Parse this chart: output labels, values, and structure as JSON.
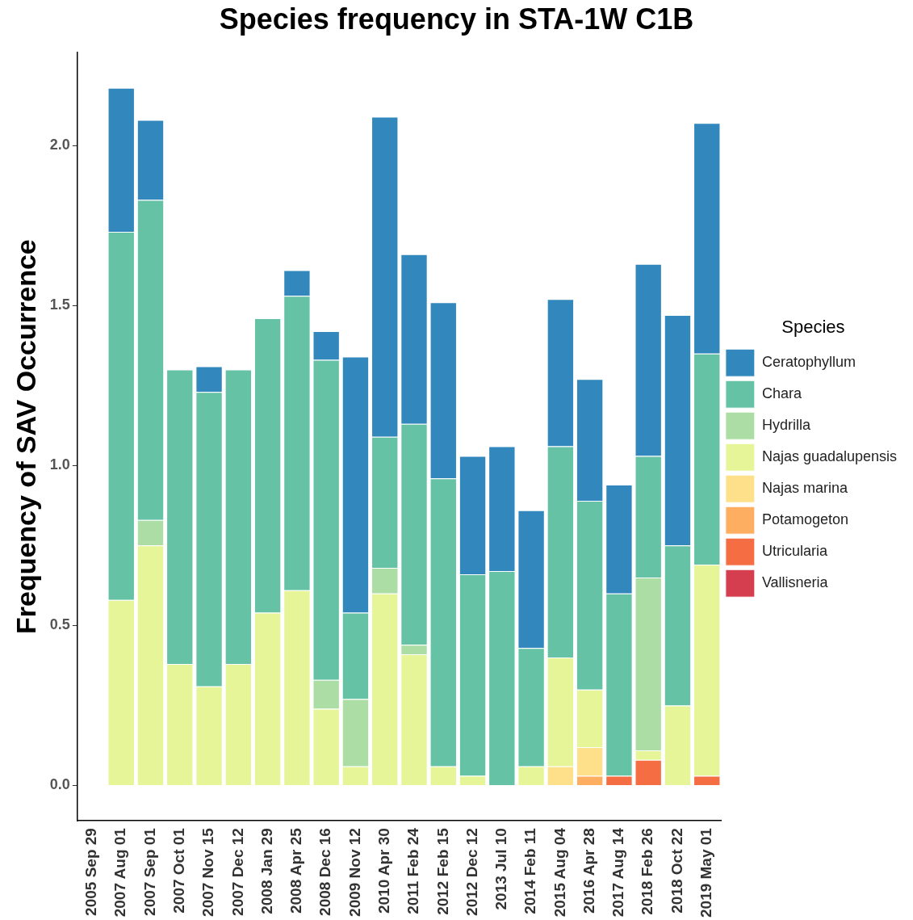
{
  "chart_data": {
    "type": "bar",
    "title": "Species frequency in STA-1W C1B",
    "ylabel": "Frequency of SAV Occurrence",
    "legend_title": "Species",
    "categories": [
      "2005 Sep 29",
      "2007 Aug 01",
      "2007 Sep 01",
      "2007 Oct 01",
      "2007 Nov 15",
      "2007 Dec 12",
      "2008 Jan 29",
      "2008 Apr 25",
      "2008 Dec 16",
      "2009 Nov 12",
      "2010 Apr 30",
      "2011 Feb 24",
      "2012 Feb 15",
      "2012 Dec 12",
      "2013 Jul 10",
      "2014 Feb 11",
      "2015 Aug 04",
      "2016 Apr 28",
      "2017 Aug 14",
      "2018 Feb 26",
      "2018 Oct 22",
      "2019 May 01"
    ],
    "stacked": true,
    "series": [
      {
        "name": "Vallisneria",
        "color": "#d53e4f",
        "values": [
          0,
          0,
          0,
          0,
          0,
          0,
          0,
          0,
          0,
          0,
          0,
          0,
          0,
          0,
          0,
          0,
          0,
          0,
          0,
          0,
          0,
          0
        ]
      },
      {
        "name": "Utricularia",
        "color": "#f46d43",
        "values": [
          0,
          0,
          0,
          0,
          0,
          0,
          0,
          0,
          0,
          0,
          0,
          0,
          0,
          0,
          0,
          0,
          0,
          0,
          0.03,
          0.08,
          0,
          0.03
        ]
      },
      {
        "name": "Potamogeton",
        "color": "#fdae61",
        "values": [
          0,
          0,
          0,
          0,
          0,
          0,
          0,
          0,
          0,
          0,
          0,
          0,
          0,
          0,
          0,
          0,
          0,
          0.03,
          0,
          0,
          0,
          0
        ]
      },
      {
        "name": "Najas marina",
        "color": "#fee08b",
        "values": [
          0,
          0,
          0,
          0,
          0,
          0,
          0,
          0,
          0,
          0,
          0,
          0,
          0,
          0,
          0,
          0,
          0.06,
          0.09,
          0,
          0,
          0,
          0
        ]
      },
      {
        "name": "Najas guadalupensis",
        "color": "#e6f598",
        "values": [
          0,
          0.58,
          0.75,
          0.38,
          0.31,
          0.38,
          0.54,
          0.61,
          0.24,
          0.06,
          0.6,
          0.41,
          0.06,
          0.03,
          0,
          0.06,
          0.34,
          0.18,
          0,
          0.03,
          0.25,
          0.66
        ]
      },
      {
        "name": "Hydrilla",
        "color": "#abdda4",
        "values": [
          0,
          0,
          0.08,
          0,
          0,
          0,
          0,
          0,
          0.09,
          0.21,
          0.08,
          0.03,
          0,
          0,
          0,
          0,
          0,
          0,
          0,
          0.54,
          0,
          0
        ]
      },
      {
        "name": "Chara",
        "color": "#66c2a5",
        "values": [
          0,
          1.15,
          1,
          0.92,
          0.92,
          0.92,
          0.92,
          0.92,
          1,
          0.27,
          0.41,
          0.69,
          0.9,
          0.63,
          0.67,
          0.37,
          0.66,
          0.59,
          0.57,
          0.38,
          0.5,
          0.66
        ]
      },
      {
        "name": "Ceratophyllum",
        "color": "#3288bd",
        "values": [
          0,
          0.45,
          0.25,
          0,
          0.08,
          0,
          0,
          0.08,
          0.09,
          0.8,
          1,
          0.53,
          0.55,
          0.37,
          0.39,
          0.43,
          0.46,
          0.38,
          0.34,
          0.6,
          0.72,
          0.72
        ]
      }
    ],
    "ylim": [
      -0.11,
      2.29
    ],
    "yticks": [
      {
        "value": 0,
        "label": "0.0"
      },
      {
        "value": 0.5,
        "label": "0.5"
      },
      {
        "value": 1,
        "label": "1.0"
      },
      {
        "value": 1.5,
        "label": "1.5"
      },
      {
        "value": 2,
        "label": "2.0"
      }
    ],
    "grid": false,
    "legend": "right"
  }
}
